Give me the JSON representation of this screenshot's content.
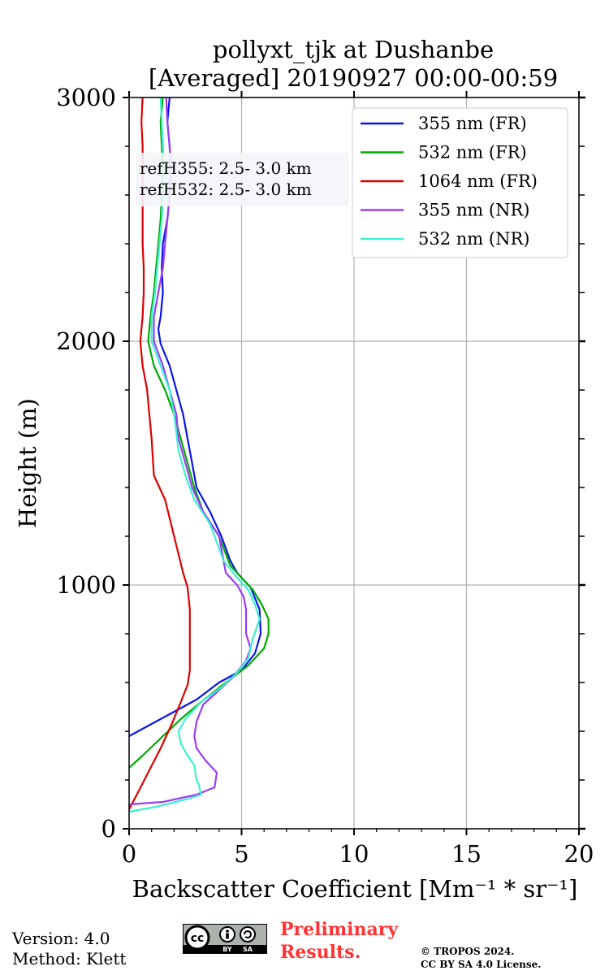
{
  "chart_data": {
    "type": "line",
    "title": [
      "pollyxt_tjk at Dushanbe",
      "[Averaged] 20190927 00:00-00:59"
    ],
    "xlabel": "Backscatter Coefficient [Mm⁻¹ * sr⁻¹]",
    "ylabel": "Height (m)",
    "xlim": [
      0,
      20
    ],
    "ylim": [
      0,
      3000
    ],
    "xticks": [
      0,
      5,
      10,
      15,
      20
    ],
    "yticks": [
      0,
      1000,
      2000,
      3000
    ],
    "grid": true,
    "legend_position": "top-right",
    "annotation": [
      "refH355:  2.5- 3.0 km",
      "refH532:  2.5- 3.0 km"
    ],
    "series": [
      {
        "name": "355 nm (FR)",
        "color": "#0a14e6",
        "points": [
          [
            0,
            380
          ],
          [
            1,
            430
          ],
          [
            2,
            480
          ],
          [
            3,
            530
          ],
          [
            4,
            600
          ],
          [
            5,
            650
          ],
          [
            5.6,
            720
          ],
          [
            5.85,
            800
          ],
          [
            5.8,
            900
          ],
          [
            5.4,
            990
          ],
          [
            4.8,
            1050
          ],
          [
            4.5,
            1100
          ],
          [
            4.1,
            1200
          ],
          [
            3.6,
            1300
          ],
          [
            3.0,
            1400
          ],
          [
            2.8,
            1500
          ],
          [
            2.6,
            1600
          ],
          [
            2.4,
            1700
          ],
          [
            2.1,
            1800
          ],
          [
            1.8,
            1900
          ],
          [
            1.4,
            1990
          ],
          [
            1.3,
            2050
          ],
          [
            1.4,
            2100
          ],
          [
            1.5,
            2200
          ],
          [
            1.45,
            2300
          ],
          [
            1.5,
            2400
          ],
          [
            1.7,
            2500
          ],
          [
            1.8,
            2600
          ],
          [
            1.85,
            2700
          ],
          [
            1.8,
            2800
          ],
          [
            1.7,
            2900
          ],
          [
            1.8,
            3000
          ]
        ]
      },
      {
        "name": "532 nm (FR)",
        "color": "#00aa00",
        "points": [
          [
            0,
            250
          ],
          [
            0.6,
            300
          ],
          [
            1.5,
            380
          ],
          [
            2.3,
            450
          ],
          [
            3.2,
            520
          ],
          [
            4.3,
            600
          ],
          [
            5.3,
            670
          ],
          [
            6.0,
            740
          ],
          [
            6.2,
            800
          ],
          [
            6.2,
            860
          ],
          [
            5.9,
            920
          ],
          [
            5.5,
            980
          ],
          [
            5.0,
            1030
          ],
          [
            4.5,
            1080
          ],
          [
            4.0,
            1200
          ],
          [
            3.3,
            1300
          ],
          [
            2.9,
            1400
          ],
          [
            2.6,
            1500
          ],
          [
            2.3,
            1600
          ],
          [
            2.0,
            1700
          ],
          [
            1.6,
            1800
          ],
          [
            1.1,
            1900
          ],
          [
            0.85,
            2000
          ],
          [
            0.95,
            2100
          ],
          [
            1.1,
            2200
          ],
          [
            1.2,
            2300
          ],
          [
            1.3,
            2400
          ],
          [
            1.4,
            2500
          ],
          [
            1.45,
            2600
          ],
          [
            1.5,
            2700
          ],
          [
            1.45,
            2800
          ],
          [
            1.4,
            2900
          ],
          [
            1.5,
            3000
          ]
        ]
      },
      {
        "name": "1064 nm (FR)",
        "color": "#dd0000",
        "points": [
          [
            0,
            80
          ],
          [
            0.4,
            150
          ],
          [
            0.9,
            240
          ],
          [
            1.4,
            330
          ],
          [
            1.9,
            430
          ],
          [
            2.3,
            520
          ],
          [
            2.6,
            590
          ],
          [
            2.7,
            650
          ],
          [
            2.7,
            750
          ],
          [
            2.7,
            900
          ],
          [
            2.6,
            990
          ],
          [
            2.4,
            1050
          ],
          [
            2.0,
            1200
          ],
          [
            1.6,
            1350
          ],
          [
            1.1,
            1450
          ],
          [
            1.0,
            1600
          ],
          [
            0.9,
            1700
          ],
          [
            0.8,
            1800
          ],
          [
            0.6,
            1900
          ],
          [
            0.5,
            2000
          ],
          [
            0.6,
            2100
          ],
          [
            0.65,
            2200
          ],
          [
            0.65,
            2300
          ],
          [
            0.6,
            2400
          ],
          [
            0.6,
            2500
          ],
          [
            0.6,
            2600
          ],
          [
            0.6,
            2700
          ],
          [
            0.6,
            2800
          ],
          [
            0.55,
            2900
          ],
          [
            0.6,
            3000
          ]
        ]
      },
      {
        "name": "355 nm (NR)",
        "color": "#9b3cf5",
        "points": [
          [
            0,
            100
          ],
          [
            1.5,
            110
          ],
          [
            3.0,
            140
          ],
          [
            3.8,
            170
          ],
          [
            3.9,
            230
          ],
          [
            3.4,
            280
          ],
          [
            3.0,
            330
          ],
          [
            2.9,
            380
          ],
          [
            3.0,
            440
          ],
          [
            3.3,
            510
          ],
          [
            3.9,
            560
          ],
          [
            4.6,
            620
          ],
          [
            5.2,
            690
          ],
          [
            5.4,
            740
          ],
          [
            5.2,
            800
          ],
          [
            5.2,
            900
          ],
          [
            5.1,
            950
          ],
          [
            4.8,
            1000
          ],
          [
            4.3,
            1050
          ],
          [
            4.0,
            1200
          ],
          [
            3.3,
            1300
          ],
          [
            2.8,
            1400
          ],
          [
            2.5,
            1500
          ],
          [
            2.2,
            1600
          ],
          [
            2.1,
            1700
          ],
          [
            1.8,
            1800
          ],
          [
            1.5,
            1900
          ],
          [
            1.1,
            2000
          ],
          [
            1.1,
            2100
          ],
          [
            1.3,
            2200
          ],
          [
            1.5,
            2300
          ],
          [
            1.6,
            2400
          ],
          [
            1.7,
            2500
          ],
          [
            1.8,
            2600
          ],
          [
            1.85,
            2700
          ],
          [
            1.8,
            2800
          ],
          [
            1.7,
            2900
          ],
          [
            1.65,
            3000
          ]
        ]
      },
      {
        "name": "532 nm (NR)",
        "color": "#3cf0d2",
        "points": [
          [
            0,
            70
          ],
          [
            1.2,
            90
          ],
          [
            2.5,
            120
          ],
          [
            3.2,
            140
          ],
          [
            3.1,
            180
          ],
          [
            3.0,
            200
          ],
          [
            2.9,
            260
          ],
          [
            2.6,
            300
          ],
          [
            2.3,
            350
          ],
          [
            2.2,
            400
          ],
          [
            2.5,
            450
          ],
          [
            3.2,
            520
          ],
          [
            4.1,
            580
          ],
          [
            4.8,
            640
          ],
          [
            5.3,
            700
          ],
          [
            5.5,
            780
          ],
          [
            5.8,
            860
          ],
          [
            5.6,
            920
          ],
          [
            5.3,
            980
          ],
          [
            4.8,
            1030
          ],
          [
            4.2,
            1100
          ],
          [
            3.6,
            1250
          ],
          [
            2.9,
            1350
          ],
          [
            2.5,
            1450
          ],
          [
            2.2,
            1550
          ],
          [
            2.0,
            1700
          ],
          [
            1.8,
            1800
          ],
          [
            1.4,
            1900
          ],
          [
            1.0,
            2000
          ],
          [
            1.0,
            2100
          ],
          [
            1.15,
            2200
          ],
          [
            1.25,
            2300
          ],
          [
            1.35,
            2400
          ],
          [
            1.45,
            2500
          ],
          [
            1.5,
            2600
          ],
          [
            1.55,
            2700
          ],
          [
            1.5,
            2800
          ],
          [
            1.45,
            2900
          ],
          [
            1.4,
            3000
          ]
        ]
      }
    ]
  },
  "footer": {
    "version": "Version: 4.0",
    "method": "Method: Klett",
    "preliminary": [
      "Preliminary",
      "Results."
    ],
    "copyright": [
      "© TROPOS 2024.",
      "CC BY SA 4.0 License."
    ],
    "license_badge": [
      "cc",
      "BY",
      "SA"
    ]
  }
}
